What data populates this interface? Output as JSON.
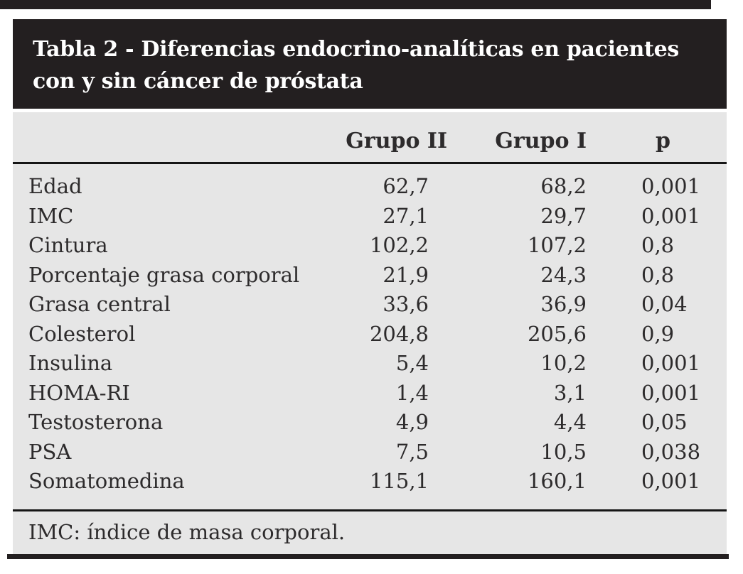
{
  "title": {
    "line1": "Tabla 2 - Diferencias endocrino-analíticas en pacientes",
    "line2": "con y sin cáncer de próstata"
  },
  "columns": [
    "Grupo II",
    "Grupo I",
    "p"
  ],
  "rows": [
    {
      "label": "Edad",
      "grupo_ii": "62,7",
      "grupo_i": "68,2",
      "p": "0,001"
    },
    {
      "label": "IMC",
      "grupo_ii": "27,1",
      "grupo_i": "29,7",
      "p": "0,001"
    },
    {
      "label": "Cintura",
      "grupo_ii": "102,2",
      "grupo_i": "107,2",
      "p": "0,8"
    },
    {
      "label": "Porcentaje grasa corporal",
      "grupo_ii": "21,9",
      "grupo_i": "24,3",
      "p": "0,8"
    },
    {
      "label": "Grasa central",
      "grupo_ii": "33,6",
      "grupo_i": "36,9",
      "p": "0,04"
    },
    {
      "label": "Colesterol",
      "grupo_ii": "204,8",
      "grupo_i": "205,6",
      "p": "0,9"
    },
    {
      "label": "Insulina",
      "grupo_ii": "5,4",
      "grupo_i": "10,2",
      "p": "0,001"
    },
    {
      "label": "HOMA-RI",
      "grupo_ii": "1,4",
      "grupo_i": "3,1",
      "p": "0,001"
    },
    {
      "label": "Testosterona",
      "grupo_ii": "4,9",
      "grupo_i": "4,4",
      "p": "0,05"
    },
    {
      "label": "PSA",
      "grupo_ii": "7,5",
      "grupo_i": "10,5",
      "p": "0,038"
    },
    {
      "label": "Somatomedina",
      "grupo_ii": "115,1",
      "grupo_i": "160,1",
      "p": "0,001"
    }
  ],
  "footnote": "IMC: índice de masa corporal.",
  "colors": {
    "header_bg": "#231f20",
    "table_bg": "#e6e6e6",
    "text": "#2d2b2c",
    "rule": "#161616"
  }
}
